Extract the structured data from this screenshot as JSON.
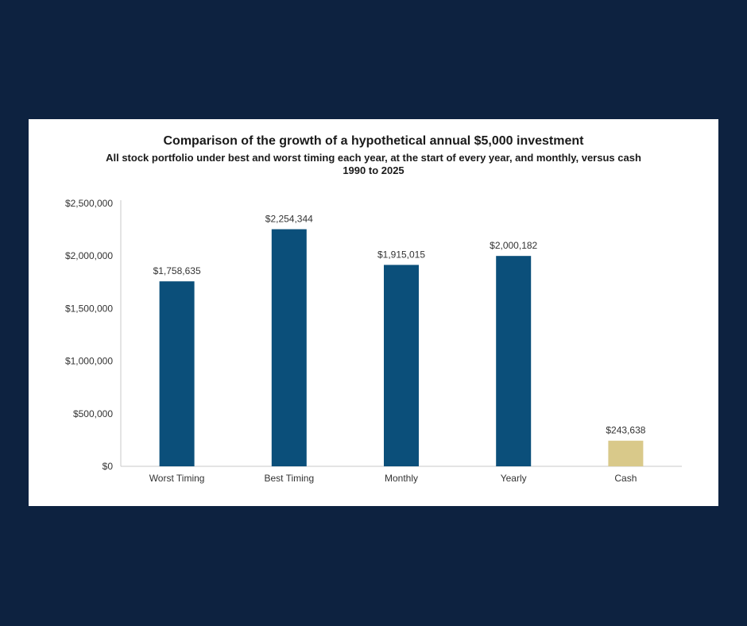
{
  "colors": {
    "page_background": "#0d2240",
    "card_background": "#ffffff",
    "stock_bar": "#0b4f7a",
    "cash_bar": "#d9c98a"
  },
  "chart_data": {
    "type": "bar",
    "title": "Comparison of the growth of a hypothetical annual $5,000 investment",
    "subtitle": [
      "All stock portfolio under best and worst timing each year, at the start of every year, and monthly, versus cash",
      "1990 to 2025"
    ],
    "categories": [
      "Worst Timing",
      "Best Timing",
      "Monthly",
      "Yearly",
      "Cash"
    ],
    "values": [
      1758635,
      2254344,
      1915015,
      2000182,
      243638
    ],
    "data_labels": [
      "$1,758,635",
      "$2,254,344",
      "$1,915,015",
      "$2,000,182",
      "$243,638"
    ],
    "bar_colors": [
      "#0b4f7a",
      "#0b4f7a",
      "#0b4f7a",
      "#0b4f7a",
      "#d9c98a"
    ],
    "ylim": [
      0,
      2500000
    ],
    "yticks": [
      0,
      500000,
      1000000,
      1500000,
      2000000,
      2500000
    ],
    "ytick_labels": [
      "$0",
      "$500,000",
      "$1,000,000",
      "$1,500,000",
      "$2,000,000",
      "$2,500,000"
    ],
    "xlabel": "",
    "ylabel": "",
    "grid": false,
    "legend": "none"
  }
}
